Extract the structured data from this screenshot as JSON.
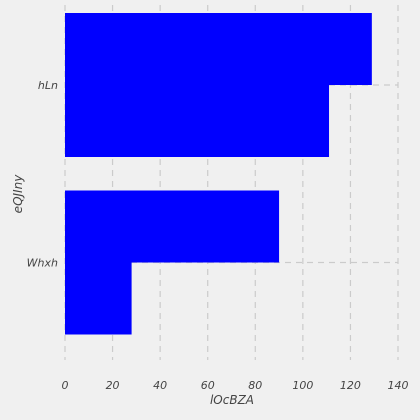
{
  "chart_data": {
    "type": "bar",
    "orientation": "horizontal",
    "title": "",
    "xlabel": "lOcBZA",
    "ylabel": "eQJIny",
    "categories": [
      "hLn",
      "Whxh"
    ],
    "series": [
      {
        "values": [
          129,
          90
        ]
      },
      {
        "values": [
          111,
          28
        ]
      }
    ],
    "xlim": [
      0,
      140
    ],
    "xticks": [
      0,
      20,
      40,
      60,
      80,
      100,
      120,
      140
    ],
    "grid": true,
    "legend": "none",
    "colors": {
      "bar": "#0000ff",
      "background": "#f0f0f0",
      "grid": "#cbcbcb",
      "text": "#444444"
    }
  }
}
